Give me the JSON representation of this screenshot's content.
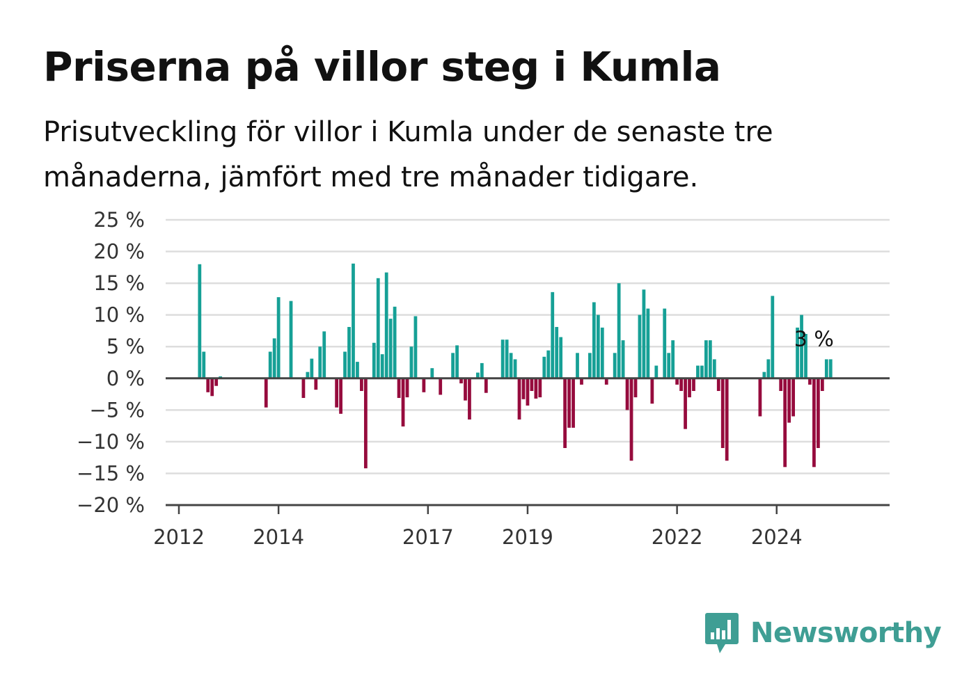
{
  "title": "Priserna på villor steg i Kumla",
  "subtitle": "Prisutveckling för villor i Kumla under de senaste tre månaderna, jämfört med tre månader tidigare.",
  "brand": {
    "name": "Newsworthy",
    "icon": "bar-chart-speech-bubble-icon"
  },
  "colors": {
    "positive": "#16a096",
    "negative": "#960b3d",
    "grid": "#dddddd",
    "axis": "#444444"
  },
  "chart_data": {
    "type": "bar",
    "title": "Priserna på villor steg i Kumla",
    "subtitle": "Prisutveckling för villor i Kumla under de senaste tre månaderna, jämfört med tre månader tidigare.",
    "xlabel": "",
    "ylabel": "",
    "unit": "%",
    "ylim": [
      -20,
      25
    ],
    "yticks": [
      25,
      20,
      15,
      10,
      5,
      0,
      -5,
      -10,
      -15,
      -20
    ],
    "ytick_labels": [
      "25 %",
      "20 %",
      "15 %",
      "10 %",
      "5 %",
      "0 %",
      "−5 %",
      "−10 %",
      "−15 %",
      "−20 %"
    ],
    "xticks": [
      "2012",
      "2014",
      "2017",
      "2019",
      "2022",
      "2024"
    ],
    "grid": true,
    "last_value_label": "3 %",
    "x": [
      "2012-01",
      "2012-02",
      "2012-03",
      "2012-04",
      "2012-05",
      "2012-06",
      "2012-07",
      "2012-08",
      "2012-09",
      "2012-10",
      "2012-11",
      "2012-12",
      "2013-01",
      "2013-02",
      "2013-03",
      "2013-04",
      "2013-05",
      "2013-06",
      "2013-07",
      "2013-08",
      "2013-09",
      "2013-10",
      "2013-11",
      "2013-12",
      "2014-01",
      "2014-02",
      "2014-03",
      "2014-04",
      "2014-05",
      "2014-06",
      "2014-07",
      "2014-08",
      "2014-09",
      "2014-10",
      "2014-11",
      "2014-12",
      "2015-01",
      "2015-02",
      "2015-03",
      "2015-04",
      "2015-05",
      "2015-06",
      "2015-07",
      "2015-08",
      "2015-09",
      "2015-10",
      "2015-11",
      "2015-12",
      "2016-01",
      "2016-02",
      "2016-03",
      "2016-04",
      "2016-05",
      "2016-06",
      "2016-07",
      "2016-08",
      "2016-09",
      "2016-10",
      "2016-11",
      "2016-12",
      "2017-01",
      "2017-02",
      "2017-03",
      "2017-04",
      "2017-05",
      "2017-06",
      "2017-07",
      "2017-08",
      "2017-09",
      "2017-10",
      "2017-11",
      "2017-12",
      "2018-01",
      "2018-02",
      "2018-03",
      "2018-04",
      "2018-05",
      "2018-06",
      "2018-07",
      "2018-08",
      "2018-09",
      "2018-10",
      "2018-11",
      "2018-12",
      "2019-01",
      "2019-02",
      "2019-03",
      "2019-04",
      "2019-05",
      "2019-06",
      "2019-07",
      "2019-08",
      "2019-09",
      "2019-10",
      "2019-11",
      "2019-12",
      "2020-01",
      "2020-02",
      "2020-03",
      "2020-04",
      "2020-05",
      "2020-06",
      "2020-07",
      "2020-08",
      "2020-09",
      "2020-10",
      "2020-11",
      "2020-12",
      "2021-01",
      "2021-02",
      "2021-03",
      "2021-04",
      "2021-05",
      "2021-06",
      "2021-07",
      "2021-08",
      "2021-09",
      "2021-10",
      "2021-11",
      "2021-12",
      "2022-01",
      "2022-02",
      "2022-03",
      "2022-04",
      "2022-05",
      "2022-06",
      "2022-07",
      "2022-08",
      "2022-09",
      "2022-10",
      "2022-11",
      "2022-12",
      "2023-01",
      "2023-02",
      "2023-03",
      "2023-04",
      "2023-05",
      "2023-06",
      "2023-07",
      "2023-08",
      "2023-09",
      "2023-10",
      "2023-11",
      "2023-12",
      "2024-01",
      "2024-02",
      "2024-03",
      "2024-04",
      "2024-05",
      "2024-06",
      "2024-07",
      "2024-08",
      "2024-09",
      "2024-10",
      "2024-11",
      "2024-12",
      "2025-01",
      "2025-02",
      "2025-03",
      "2025-04",
      "2025-05",
      "2025-06",
      "2025-07",
      "2025-08",
      "2025-09",
      "2025-10"
    ],
    "values": [
      null,
      null,
      null,
      null,
      null,
      18,
      4.2,
      -2.2,
      -2.8,
      -1.2,
      0.3,
      null,
      null,
      null,
      null,
      null,
      null,
      null,
      null,
      null,
      null,
      -4.6,
      4.2,
      6.3,
      12.8,
      null,
      null,
      12.2,
      null,
      null,
      -3.1,
      1,
      3.1,
      -1.8,
      5,
      7.4,
      null,
      null,
      -4.6,
      -5.6,
      4.2,
      8.1,
      18.1,
      2.6,
      -2,
      -14.2,
      null,
      5.6,
      15.8,
      3.8,
      16.7,
      9.4,
      11.3,
      -3.1,
      -7.6,
      -3,
      5,
      9.8,
      null,
      -2.2,
      null,
      1.6,
      null,
      -2.6,
      null,
      null,
      4,
      5.2,
      -0.8,
      -3.5,
      -6.5,
      null,
      0.9,
      2.4,
      -2.3,
      null,
      null,
      null,
      6.1,
      6.1,
      4,
      3,
      -6.5,
      -3.3,
      -4.3,
      -2,
      -3.2,
      -3,
      3.4,
      4.4,
      13.6,
      8.1,
      6.5,
      -11,
      -7.8,
      -7.8,
      4,
      -1,
      null,
      4,
      12,
      10,
      8,
      -1,
      null,
      4,
      15,
      6,
      -5,
      -13,
      -3,
      10,
      14,
      11,
      -4,
      2,
      null,
      11,
      4,
      6,
      -1,
      -2,
      -8,
      -3,
      -2,
      2,
      2,
      6,
      6,
      3,
      -2,
      -11,
      -13,
      null,
      null,
      null,
      null,
      null,
      null,
      null,
      -6,
      1,
      3,
      13,
      null,
      -2,
      -14,
      -7,
      -6,
      8,
      10,
      7,
      -1,
      -14,
      -11,
      -2,
      3,
      3,
      null,
      null,
      null,
      null,
      null,
      null,
      null,
      null
    ]
  }
}
